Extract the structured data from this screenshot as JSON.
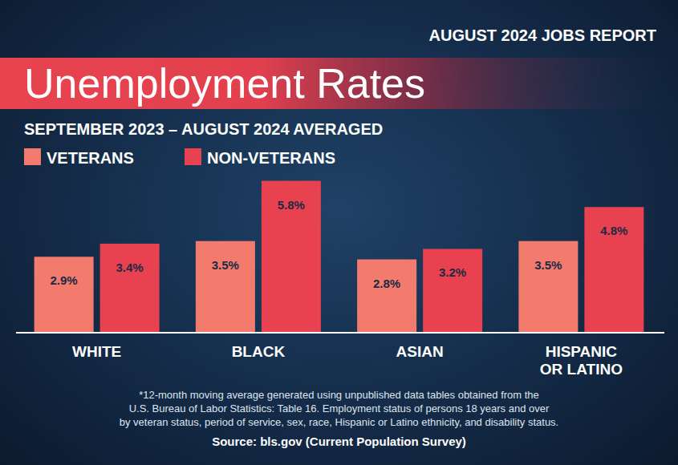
{
  "chart_data": {
    "type": "bar",
    "header": "AUGUST 2024 JOBS REPORT",
    "title": "Unemployment Rates",
    "subtitle": "SEPTEMBER 2023 – AUGUST 2024 AVERAGED",
    "categories": [
      "WHITE",
      "BLACK",
      "ASIAN",
      "HISPANIC OR LATINO"
    ],
    "series": [
      {
        "name": "VETERANS",
        "color": "#f27b6d",
        "values": [
          2.9,
          3.5,
          2.8,
          3.5
        ],
        "value_labels": [
          "2.9%",
          "3.5%",
          "2.8%",
          "3.5%"
        ]
      },
      {
        "name": "NON-VETERANS",
        "color": "#e8414f",
        "values": [
          3.4,
          5.8,
          3.2,
          4.8
        ],
        "value_labels": [
          "3.4%",
          "5.8%",
          "3.2%",
          "4.8%"
        ]
      }
    ],
    "ylim": [
      0,
      6
    ],
    "data_labels": true,
    "tick_labels": "x",
    "legend": "top left",
    "footnote": [
      "*12-month moving average generated using unpublished data tables obtained from the",
      "U.S. Bureau of Labor Statistics: Table 16. Employment status of persons 18 years and over",
      "by veteran status, period of service, sex, race, Hispanic or Latino ethnicity, and disability status."
    ],
    "source": "Source: bls.gov (Current Population Survey)"
  }
}
